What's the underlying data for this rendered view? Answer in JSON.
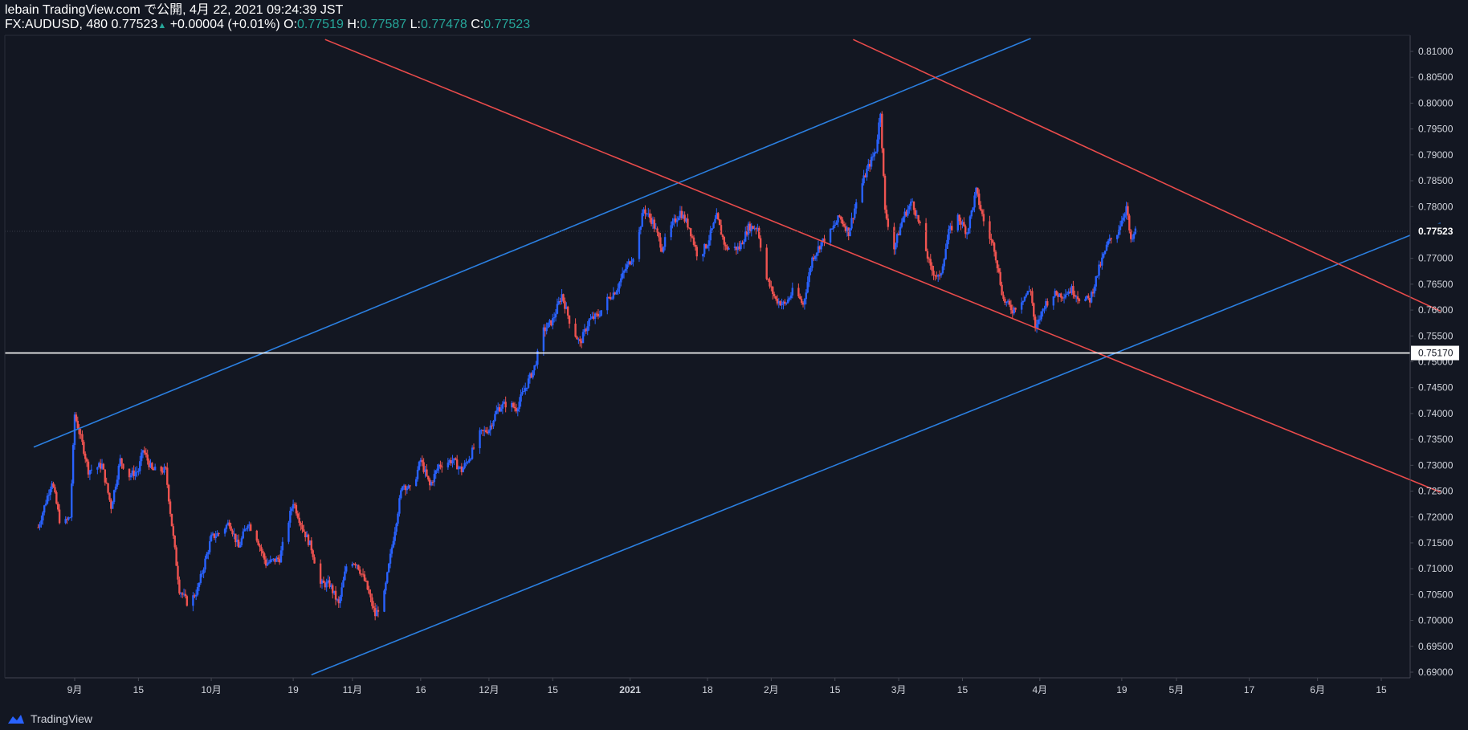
{
  "header": {
    "author_line": "lebain TradingView.com で公開, 4月 22, 2021 09:24:39 JST",
    "symbol": "FX:AUDUSD, 480",
    "last": "0.77523",
    "change": "+0.00004 (+0.01%)",
    "o_label": "O:",
    "o_val": "0.77519",
    "h_label": "H:",
    "h_val": "0.77587",
    "l_label": "L:",
    "l_val": "0.77478",
    "c_label": "C:",
    "c_val": "0.77523"
  },
  "footer": {
    "brand": "TradingView"
  },
  "colors": {
    "bg": "#131722",
    "up": "#2962ff",
    "down": "#ef5350",
    "blue_line": "#2b7fe0",
    "red_line": "#e94b4b",
    "grid": "#2a2e39",
    "axis_text": "#d1d4dc"
  },
  "chart_data": {
    "type": "candlestick",
    "symbol": "FX:AUDUSD",
    "timeframe": "480",
    "y_ticks": [
      "0.81000",
      "0.80500",
      "0.80000",
      "0.79500",
      "0.79000",
      "0.78500",
      "0.78000",
      "0.77500",
      "0.77000",
      "0.76500",
      "0.76000",
      "0.75500",
      "0.75000",
      "0.74500",
      "0.74000",
      "0.73500",
      "0.73000",
      "0.72500",
      "0.72000",
      "0.71500",
      "0.71000",
      "0.70500",
      "0.70000",
      "0.69500",
      "0.69000"
    ],
    "ylim": [
      0.6895,
      0.8123
    ],
    "x_ticks": [
      "9月",
      "15",
      "10月",
      "19",
      "11月",
      "16",
      "12月",
      "15",
      "2021",
      "18",
      "2月",
      "15",
      "3月",
      "15",
      "4月",
      "19",
      "5月",
      "17",
      "6月",
      "15"
    ],
    "x_tick_dates": [
      "2020-09-01",
      "2020-09-15",
      "2020-10-01",
      "2020-10-19",
      "2020-11-01",
      "2020-11-16",
      "2020-12-01",
      "2020-12-15",
      "2021-01-01",
      "2021-01-18",
      "2021-02-01",
      "2021-02-15",
      "2021-03-01",
      "2021-03-15",
      "2021-04-01",
      "2021-04-19",
      "2021-05-01",
      "2021-05-17",
      "2021-06-01",
      "2021-06-15"
    ],
    "price_labels": {
      "last": "0.77523",
      "horizontal_level": "0.75170"
    },
    "horizontal_level": 0.7517,
    "trendlines": [
      {
        "color": "blue",
        "points": [
          [
            "2020-08-23",
            0.7335
          ],
          [
            "2021-03-30",
            0.8125
          ]
        ]
      },
      {
        "color": "blue",
        "points": [
          [
            "2020-10-23",
            0.6895
          ],
          [
            "2021-06-28",
            0.7768
          ]
        ]
      },
      {
        "color": "red",
        "points": [
          [
            "2020-10-26",
            0.8123
          ],
          [
            "2021-06-28",
            0.7248
          ]
        ]
      },
      {
        "color": "red",
        "points": [
          [
            "2021-02-19",
            0.8123
          ],
          [
            "2021-06-28",
            0.7598
          ]
        ]
      }
    ],
    "price_path": [
      [
        "2020-08-24",
        0.718
      ],
      [
        "2020-08-27",
        0.727
      ],
      [
        "2020-08-29",
        0.718
      ],
      [
        "2020-08-31",
        0.72
      ],
      [
        "2020-09-01",
        0.7398
      ],
      [
        "2020-09-03",
        0.733
      ],
      [
        "2020-09-04",
        0.729
      ],
      [
        "2020-09-07",
        0.73
      ],
      [
        "2020-09-09",
        0.722
      ],
      [
        "2020-09-11",
        0.731
      ],
      [
        "2020-09-13",
        0.728
      ],
      [
        "2020-09-15",
        0.729
      ],
      [
        "2020-09-16",
        0.733
      ],
      [
        "2020-09-18",
        0.729
      ],
      [
        "2020-09-21",
        0.729
      ],
      [
        "2020-09-22",
        0.721
      ],
      [
        "2020-09-24",
        0.706
      ],
      [
        "2020-09-26",
        0.703
      ],
      [
        "2020-09-28",
        0.706
      ],
      [
        "2020-10-01",
        0.716
      ],
      [
        "2020-10-03",
        0.717
      ],
      [
        "2020-10-05",
        0.719
      ],
      [
        "2020-10-07",
        0.714
      ],
      [
        "2020-10-09",
        0.719
      ],
      [
        "2020-10-11",
        0.716
      ],
      [
        "2020-10-13",
        0.711
      ],
      [
        "2020-10-16",
        0.712
      ],
      [
        "2020-10-19",
        0.723
      ],
      [
        "2020-10-21",
        0.718
      ],
      [
        "2020-10-23",
        0.714
      ],
      [
        "2020-10-25",
        0.707
      ],
      [
        "2020-10-27",
        0.707
      ],
      [
        "2020-10-29",
        0.703
      ],
      [
        "2020-10-31",
        0.712
      ],
      [
        "2020-11-02",
        0.711
      ],
      [
        "2020-11-04",
        0.707
      ],
      [
        "2020-11-06",
        0.701
      ],
      [
        "2020-11-08",
        0.705
      ],
      [
        "2020-11-10",
        0.716
      ],
      [
        "2020-11-12",
        0.7265
      ],
      [
        "2020-11-14",
        0.725
      ],
      [
        "2020-11-16",
        0.731
      ],
      [
        "2020-11-18",
        0.726
      ],
      [
        "2020-11-20",
        0.73
      ],
      [
        "2020-11-23",
        0.731
      ],
      [
        "2020-11-25",
        0.729
      ],
      [
        "2020-11-27",
        0.732
      ],
      [
        "2020-11-29",
        0.736
      ],
      [
        "2020-12-01",
        0.737
      ],
      [
        "2020-12-03",
        0.741
      ],
      [
        "2020-12-05",
        0.742
      ],
      [
        "2020-12-07",
        0.741
      ],
      [
        "2020-12-09",
        0.745
      ],
      [
        "2020-12-11",
        0.749
      ],
      [
        "2020-12-13",
        0.756
      ],
      [
        "2020-12-15",
        0.758
      ],
      [
        "2020-12-17",
        0.763
      ],
      [
        "2020-12-19",
        0.757
      ],
      [
        "2020-12-21",
        0.7535
      ],
      [
        "2020-12-23",
        0.758
      ],
      [
        "2020-12-25",
        0.759
      ],
      [
        "2020-12-27",
        0.762
      ],
      [
        "2020-12-29",
        0.764
      ],
      [
        "2020-12-31",
        0.768
      ],
      [
        "2021-01-02",
        0.771
      ],
      [
        "2021-01-04",
        0.7795
      ],
      [
        "2021-01-06",
        0.777
      ],
      [
        "2021-01-08",
        0.772
      ],
      [
        "2021-01-10",
        0.776
      ],
      [
        "2021-01-12",
        0.779
      ],
      [
        "2021-01-14",
        0.776
      ],
      [
        "2021-01-16",
        0.77
      ],
      [
        "2021-01-18",
        0.773
      ],
      [
        "2021-01-20",
        0.778
      ],
      [
        "2021-01-22",
        0.772
      ],
      [
        "2021-01-25",
        0.772
      ],
      [
        "2021-01-27",
        0.776
      ],
      [
        "2021-01-29",
        0.776
      ],
      [
        "2021-01-31",
        0.766
      ],
      [
        "2021-02-02",
        0.762
      ],
      [
        "2021-02-04",
        0.761
      ],
      [
        "2021-02-06",
        0.764
      ],
      [
        "2021-02-08",
        0.761
      ],
      [
        "2021-02-10",
        0.77
      ],
      [
        "2021-02-12",
        0.773
      ],
      [
        "2021-02-14",
        0.775
      ],
      [
        "2021-02-16",
        0.778
      ],
      [
        "2021-02-18",
        0.775
      ],
      [
        "2021-02-20",
        0.782
      ],
      [
        "2021-02-22",
        0.787
      ],
      [
        "2021-02-24",
        0.791
      ],
      [
        "2021-02-25",
        0.7985
      ],
      [
        "2021-02-26",
        0.779
      ],
      [
        "2021-02-28",
        0.772
      ],
      [
        "2021-03-02",
        0.778
      ],
      [
        "2021-03-04",
        0.781
      ],
      [
        "2021-03-06",
        0.775
      ],
      [
        "2021-03-08",
        0.768
      ],
      [
        "2021-03-10",
        0.766
      ],
      [
        "2021-03-12",
        0.775
      ],
      [
        "2021-03-14",
        0.778
      ],
      [
        "2021-03-16",
        0.775
      ],
      [
        "2021-03-18",
        0.783
      ],
      [
        "2021-03-20",
        0.776
      ],
      [
        "2021-03-22",
        0.772
      ],
      [
        "2021-03-24",
        0.762
      ],
      [
        "2021-03-26",
        0.76
      ],
      [
        "2021-03-28",
        0.762
      ],
      [
        "2021-03-30",
        0.764
      ],
      [
        "2021-03-31",
        0.756
      ],
      [
        "2021-04-02",
        0.761
      ],
      [
        "2021-04-04",
        0.763
      ],
      [
        "2021-04-06",
        0.763
      ],
      [
        "2021-04-08",
        0.764
      ],
      [
        "2021-04-10",
        0.762
      ],
      [
        "2021-04-12",
        0.762
      ],
      [
        "2021-04-14",
        0.768
      ],
      [
        "2021-04-16",
        0.773
      ],
      [
        "2021-04-18",
        0.775
      ],
      [
        "2021-04-20",
        0.78
      ],
      [
        "2021-04-21",
        0.773
      ],
      [
        "2021-04-22",
        0.77523
      ]
    ]
  }
}
